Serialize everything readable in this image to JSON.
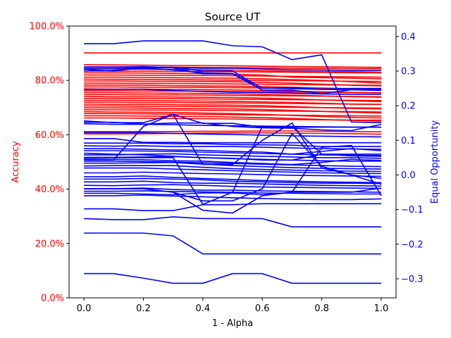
{
  "chart_data": {
    "type": "line",
    "title": "Source UT",
    "xlabel": "1 - Alpha",
    "ylabel_left": "Accuracy",
    "ylabel_right": "Equal Opportunity",
    "left_color": "#ff0000",
    "right_color": "#0000ff",
    "x": [
      0.0,
      0.1,
      0.2,
      0.3,
      0.4,
      0.5,
      0.6,
      0.7,
      0.8,
      0.9,
      1.0
    ],
    "xlim": [
      -0.05,
      1.05
    ],
    "ylim_left": [
      0.0,
      1.0
    ],
    "ylim_right": [
      -0.355,
      0.43
    ],
    "x_ticks": [
      0.0,
      0.2,
      0.4,
      0.6,
      0.8,
      1.0
    ],
    "x_tick_labels": [
      "0.0",
      "0.2",
      "0.4",
      "0.6",
      "0.8",
      "1.0"
    ],
    "left_ticks": [
      0.0,
      0.2,
      0.4,
      0.6,
      0.8,
      1.0
    ],
    "left_tick_labels": [
      "0.0%",
      "20.0%",
      "40.0%",
      "60.0%",
      "80.0%",
      "100.0%"
    ],
    "right_ticks": [
      -0.3,
      -0.2,
      -0.1,
      0.0,
      0.1,
      0.2,
      0.3,
      0.4
    ],
    "right_tick_labels": [
      "−0.3",
      "−0.2",
      "−0.1",
      "0.0",
      "0.1",
      "0.2",
      "0.3",
      "0.4"
    ],
    "accuracy_series": [
      {
        "values": [
          0.901,
          0.901,
          0.901,
          0.901,
          0.901,
          0.901,
          0.901,
          0.901,
          0.901,
          0.901,
          0.901
        ]
      },
      {
        "values": [
          0.858,
          0.857,
          0.856,
          0.855,
          0.855,
          0.854,
          0.852,
          0.851,
          0.85,
          0.849,
          0.848
        ]
      },
      {
        "values": [
          0.85,
          0.85,
          0.849,
          0.849,
          0.848,
          0.847,
          0.846,
          0.845,
          0.844,
          0.843,
          0.843
        ]
      },
      {
        "values": [
          0.842,
          0.842,
          0.841,
          0.84,
          0.839,
          0.838,
          0.836,
          0.834,
          0.833,
          0.832,
          0.83
        ]
      },
      {
        "values": [
          0.835,
          0.834,
          0.834,
          0.833,
          0.833,
          0.832,
          0.831,
          0.83,
          0.829,
          0.828,
          0.828
        ]
      },
      {
        "values": [
          0.828,
          0.828,
          0.827,
          0.826,
          0.825,
          0.823,
          0.82,
          0.812,
          0.81,
          0.808,
          0.806
        ]
      },
      {
        "values": [
          0.82,
          0.82,
          0.819,
          0.819,
          0.818,
          0.817,
          0.816,
          0.815,
          0.814,
          0.813,
          0.812
        ]
      },
      {
        "values": [
          0.812,
          0.812,
          0.811,
          0.81,
          0.809,
          0.808,
          0.806,
          0.803,
          0.8,
          0.795,
          0.79
        ]
      },
      {
        "values": [
          0.805,
          0.804,
          0.804,
          0.803,
          0.802,
          0.801,
          0.8,
          0.799,
          0.798,
          0.797,
          0.796
        ]
      },
      {
        "values": [
          0.798,
          0.798,
          0.797,
          0.797,
          0.796,
          0.795,
          0.793,
          0.79,
          0.786,
          0.782,
          0.78
        ]
      },
      {
        "values": [
          0.79,
          0.79,
          0.789,
          0.789,
          0.788,
          0.787,
          0.786,
          0.785,
          0.784,
          0.783,
          0.782
        ]
      },
      {
        "values": [
          0.783,
          0.783,
          0.782,
          0.781,
          0.78,
          0.779,
          0.777,
          0.775,
          0.772,
          0.77,
          0.768
        ]
      },
      {
        "values": [
          0.776,
          0.776,
          0.775,
          0.775,
          0.774,
          0.773,
          0.772,
          0.771,
          0.77,
          0.769,
          0.768
        ]
      },
      {
        "values": [
          0.769,
          0.768,
          0.768,
          0.767,
          0.766,
          0.765,
          0.763,
          0.761,
          0.758,
          0.756,
          0.755
        ]
      },
      {
        "values": [
          0.762,
          0.762,
          0.761,
          0.761,
          0.76,
          0.759,
          0.758,
          0.757,
          0.756,
          0.755,
          0.754
        ]
      },
      {
        "values": [
          0.755,
          0.755,
          0.754,
          0.753,
          0.752,
          0.751,
          0.749,
          0.746,
          0.743,
          0.74,
          0.738
        ]
      },
      {
        "values": [
          0.748,
          0.748,
          0.747,
          0.747,
          0.746,
          0.745,
          0.744,
          0.743,
          0.742,
          0.741,
          0.74
        ]
      },
      {
        "values": [
          0.741,
          0.74,
          0.74,
          0.739,
          0.738,
          0.737,
          0.735,
          0.732,
          0.728,
          0.725,
          0.722
        ]
      },
      {
        "values": [
          0.734,
          0.734,
          0.733,
          0.733,
          0.732,
          0.731,
          0.73,
          0.729,
          0.728,
          0.727,
          0.726
        ]
      },
      {
        "values": [
          0.727,
          0.727,
          0.726,
          0.725,
          0.724,
          0.723,
          0.721,
          0.719,
          0.716,
          0.713,
          0.712
        ]
      },
      {
        "values": [
          0.72,
          0.72,
          0.719,
          0.719,
          0.718,
          0.717,
          0.716,
          0.715,
          0.714,
          0.713,
          0.712
        ]
      },
      {
        "values": [
          0.713,
          0.712,
          0.712,
          0.711,
          0.71,
          0.709,
          0.707,
          0.704,
          0.7,
          0.697,
          0.695
        ]
      },
      {
        "values": [
          0.706,
          0.706,
          0.705,
          0.705,
          0.704,
          0.703,
          0.702,
          0.701,
          0.7,
          0.699,
          0.698
        ]
      },
      {
        "values": [
          0.699,
          0.699,
          0.698,
          0.697,
          0.696,
          0.695,
          0.693,
          0.69,
          0.686,
          0.683,
          0.68
        ]
      },
      {
        "values": [
          0.692,
          0.692,
          0.691,
          0.691,
          0.69,
          0.689,
          0.688,
          0.687,
          0.686,
          0.685,
          0.684
        ]
      },
      {
        "values": [
          0.685,
          0.684,
          0.683,
          0.682,
          0.68,
          0.678,
          0.675,
          0.671,
          0.667,
          0.664,
          0.662
        ]
      },
      {
        "values": [
          0.678,
          0.678,
          0.677,
          0.676,
          0.675,
          0.674,
          0.673,
          0.672,
          0.671,
          0.67,
          0.669
        ]
      },
      {
        "values": [
          0.67,
          0.67,
          0.669,
          0.668,
          0.667,
          0.665,
          0.663,
          0.66,
          0.656,
          0.653,
          0.65
        ]
      },
      {
        "values": [
          0.662,
          0.662,
          0.661,
          0.66,
          0.659,
          0.658,
          0.657,
          0.656,
          0.655,
          0.654,
          0.654
        ]
      },
      {
        "values": [
          0.612,
          0.612,
          0.612,
          0.612,
          0.613,
          0.613,
          0.614,
          0.614,
          0.613,
          0.612,
          0.611
        ]
      },
      {
        "values": [
          0.603,
          0.603,
          0.604,
          0.605,
          0.606,
          0.607,
          0.607,
          0.606,
          0.605,
          0.604,
          0.602
        ]
      }
    ],
    "equal_opportunity_series": [
      {
        "values": [
          0.379,
          0.379,
          0.387,
          0.387,
          0.387,
          0.373,
          0.37,
          0.333,
          0.347,
          0.153,
          0.151
        ]
      },
      {
        "values": [
          0.312,
          0.312,
          0.313,
          0.31,
          0.308,
          0.308,
          0.306,
          0.304,
          0.303,
          0.302,
          0.302
        ]
      },
      {
        "values": [
          0.308,
          0.308,
          0.309,
          0.309,
          0.292,
          0.292,
          0.245,
          0.245,
          0.235,
          0.246,
          0.247
        ]
      },
      {
        "values": [
          0.305,
          0.3,
          0.311,
          0.311,
          0.3,
          0.3,
          0.25,
          0.252,
          0.248,
          0.25,
          0.25
        ]
      },
      {
        "values": [
          0.3,
          0.302,
          0.308,
          0.303,
          0.295,
          0.293,
          0.251,
          0.249,
          0.247,
          0.246,
          0.244
        ]
      },
      {
        "values": [
          0.247,
          0.247,
          0.247,
          0.244,
          0.241,
          0.239,
          0.238,
          0.236,
          0.234,
          0.233,
          0.233
        ]
      },
      {
        "values": [
          0.156,
          0.151,
          0.151,
          0.175,
          0.149,
          0.149,
          0.138,
          0.138,
          0.138,
          0.138,
          0.138
        ]
      },
      {
        "values": [
          0.152,
          0.152,
          0.147,
          0.15,
          0.15,
          0.14,
          0.136,
          0.135,
          0.13,
          0.128,
          0.146
        ]
      },
      {
        "values": [
          0.148,
          0.146,
          0.146,
          0.145,
          0.143,
          0.142,
          0.141,
          0.14,
          0.139,
          0.138,
          0.138
        ]
      },
      {
        "values": [
          0.122,
          0.122,
          0.122,
          0.12,
          0.118,
          0.117,
          0.115,
          0.113,
          0.112,
          0.111,
          0.11
        ]
      },
      {
        "values": [
          0.105,
          0.105,
          0.094,
          0.094,
          0.093,
          0.093,
          0.093,
          0.093,
          0.093,
          0.093,
          0.093
        ]
      },
      {
        "values": [
          0.092,
          0.092,
          0.092,
          0.09,
          0.09,
          0.088,
          0.087,
          0.086,
          0.082,
          0.082,
          0.082
        ]
      },
      {
        "values": [
          0.084,
          0.083,
          0.084,
          0.082,
          0.082,
          0.082,
          0.08,
          0.078,
          0.076,
          0.075,
          0.074
        ]
      },
      {
        "values": [
          0.076,
          0.076,
          0.074,
          0.072,
          0.071,
          0.068,
          0.066,
          0.06,
          0.068,
          0.076,
          0.07
        ]
      },
      {
        "values": [
          0.07,
          0.07,
          0.069,
          0.068,
          0.066,
          0.064,
          0.062,
          0.06,
          0.058,
          0.057,
          0.056
        ]
      },
      {
        "values": [
          0.063,
          0.06,
          0.058,
          0.054,
          0.05,
          0.048,
          0.043,
          0.043,
          0.06,
          0.055,
          0.054
        ]
      },
      {
        "values": [
          0.058,
          0.058,
          0.06,
          0.061,
          0.058,
          0.056,
          0.054,
          0.052,
          0.05,
          0.05,
          0.048
        ]
      },
      {
        "values": [
          0.051,
          0.051,
          0.052,
          0.053,
          0.05,
          0.047,
          0.045,
          0.043,
          0.041,
          0.04,
          0.04
        ]
      },
      {
        "values": [
          0.046,
          0.045,
          0.044,
          0.041,
          0.04,
          0.036,
          0.033,
          0.03,
          0.036,
          0.045,
          0.042
        ]
      },
      {
        "values": [
          0.04,
          0.04,
          0.039,
          0.037,
          0.035,
          0.033,
          0.031,
          0.029,
          0.027,
          0.025,
          0.024
        ]
      },
      {
        "values": [
          0.034,
          0.034,
          0.035,
          0.036,
          0.031,
          0.027,
          0.024,
          0.021,
          0.019,
          0.018,
          0.017
        ]
      },
      {
        "values": [
          0.026,
          0.027,
          0.027,
          0.027,
          0.022,
          0.018,
          0.016,
          0.014,
          0.012,
          0.011,
          0.01
        ]
      },
      {
        "values": [
          0.02,
          0.02,
          0.02,
          0.017,
          0.015,
          0.012,
          0.01,
          0.008,
          0.006,
          0.005,
          0.004
        ]
      },
      {
        "values": [
          0.006,
          0.006,
          0.008,
          0.006,
          0.004,
          0.003,
          0.001,
          -0.001,
          -0.002,
          -0.003,
          -0.004
        ]
      },
      {
        "values": [
          -0.005,
          -0.005,
          -0.003,
          -0.007,
          -0.01,
          -0.013,
          -0.016,
          -0.018,
          -0.02,
          -0.021,
          -0.022
        ]
      },
      {
        "values": [
          -0.012,
          -0.012,
          -0.01,
          -0.012,
          -0.014,
          -0.018,
          -0.02,
          -0.022,
          -0.024,
          -0.024,
          -0.025
        ]
      },
      {
        "values": [
          -0.02,
          -0.02,
          -0.018,
          -0.022,
          -0.024,
          -0.024,
          -0.026,
          -0.028,
          -0.03,
          -0.031,
          -0.032
        ]
      },
      {
        "values": [
          -0.03,
          -0.031,
          -0.029,
          -0.028,
          -0.03,
          -0.033,
          -0.035,
          -0.036,
          -0.037,
          -0.038,
          -0.039
        ]
      },
      {
        "values": [
          -0.04,
          -0.04,
          -0.038,
          -0.042,
          -0.044,
          -0.044,
          -0.046,
          -0.047,
          -0.048,
          -0.049,
          -0.05
        ]
      },
      {
        "values": [
          -0.047,
          -0.047,
          -0.046,
          -0.048,
          -0.049,
          -0.05,
          -0.052,
          -0.053,
          -0.054,
          -0.055,
          -0.055
        ]
      },
      {
        "values": [
          -0.053,
          -0.053,
          -0.055,
          -0.057,
          -0.052,
          -0.052,
          -0.057,
          -0.05,
          -0.05,
          -0.05,
          -0.038
        ]
      },
      {
        "values": [
          -0.06,
          -0.06,
          -0.058,
          -0.061,
          -0.063,
          -0.066,
          -0.068,
          -0.07,
          -0.071,
          -0.071,
          -0.069
        ]
      },
      {
        "values": [
          -0.098,
          -0.098,
          -0.103,
          -0.103,
          -0.086,
          -0.086,
          -0.083,
          -0.083,
          -0.083,
          -0.083,
          -0.083
        ]
      },
      {
        "values": [
          -0.126,
          -0.129,
          -0.129,
          -0.121,
          -0.126,
          -0.126,
          -0.126,
          -0.15,
          -0.15,
          -0.15,
          -0.15
        ]
      },
      {
        "values": [
          -0.168,
          -0.168,
          -0.168,
          -0.176,
          -0.228,
          -0.228,
          -0.228,
          -0.228,
          -0.228,
          -0.228,
          -0.228
        ]
      },
      {
        "values": [
          -0.285,
          -0.285,
          -0.298,
          -0.313,
          -0.313,
          -0.285,
          -0.285,
          -0.313,
          -0.313,
          -0.313,
          -0.313
        ]
      },
      {
        "values": [
          0.044,
          0.044,
          0.14,
          0.175,
          0.03,
          0.03,
          0.1,
          0.15,
          0.02,
          0.0,
          -0.027
        ]
      },
      {
        "values": [
          -0.04,
          -0.04,
          -0.04,
          -0.05,
          -0.075,
          -0.075,
          -0.04,
          0.12,
          0.025,
          0.0,
          -0.01
        ]
      },
      {
        "values": [
          -0.04,
          -0.04,
          -0.04,
          -0.05,
          -0.102,
          -0.11,
          -0.06,
          -0.05,
          0.08,
          0.085,
          -0.06
        ]
      },
      {
        "values": [
          0.05,
          0.05,
          0.05,
          0.05,
          -0.085,
          -0.05,
          0.14,
          0.14,
          0.06,
          0.06,
          0.06
        ]
      }
    ]
  }
}
